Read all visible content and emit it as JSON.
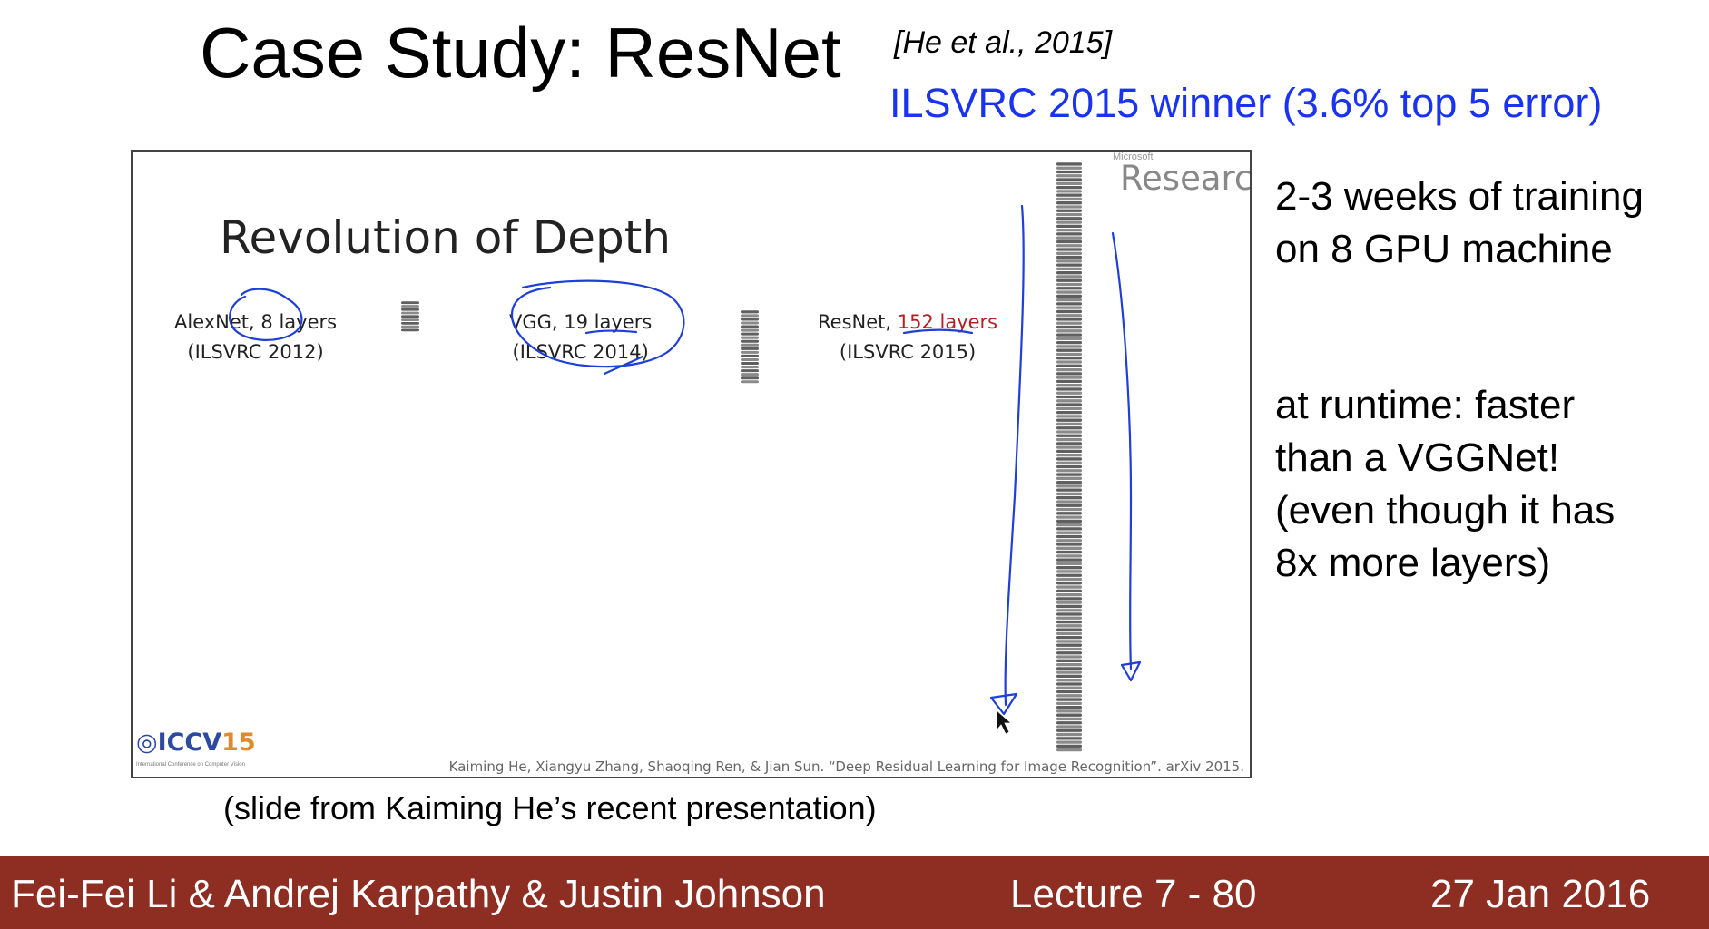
{
  "slide": {
    "title": "Case Study: ResNet",
    "citation": "[He et al., 2015]",
    "winner_text": "ILSVRC 2015 winner (3.6% top 5 error)",
    "colors": {
      "winner_blue": "#1a33ee",
      "footer_red": "#8e2d22",
      "layers_red": "#b21f24",
      "ink_blue": "#1f3fd6"
    }
  },
  "embedded_slide": {
    "brand_small": "Microsoft",
    "brand_large": "Research",
    "heading": "Revolution of Depth",
    "networks": [
      {
        "name": "AlexNet,",
        "layers": "8 layers",
        "event": "(ILSVRC 2012)"
      },
      {
        "name": "VGG,",
        "layers": "19 layers",
        "event": "(ILSVRC 2014)"
      },
      {
        "name": "ResNet,",
        "layers": "152 layers",
        "event": "(ILSVRC 2015)"
      }
    ],
    "conference_logo": "ICCV15",
    "conference_logo_main": "ICCV",
    "conference_logo_year": "15",
    "conference_subtitle": "International Conference on Computer Vision",
    "paper_citation": "Kaiming He, Xiangyu Zhang, Shaoqing Ren, & Jian Sun. “Deep Residual Learning for Image Recognition”. arXiv 2015."
  },
  "notes": {
    "training": [
      "2-3 weeks of training",
      "on 8 GPU machine"
    ],
    "runtime": [
      "at runtime: faster",
      "than a VGGNet!",
      "(even though it has",
      "8x more layers)"
    ]
  },
  "caption": "(slide from Kaiming He’s recent presentation)",
  "footer": {
    "authors": "Fei-Fei Li & Andrej Karpathy & Justin Johnson",
    "lecture": "Lecture 7 - 80",
    "date": "27 Jan 2016"
  }
}
